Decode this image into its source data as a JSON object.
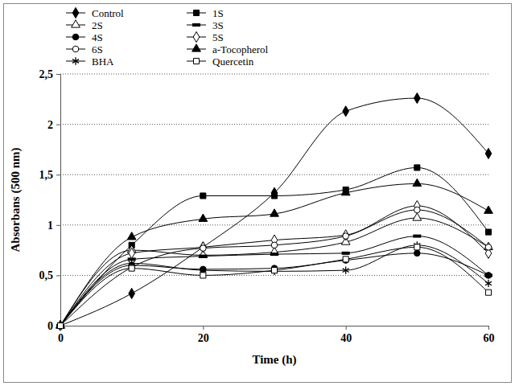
{
  "chart_data": {
    "type": "line",
    "x_label": "Time (h)",
    "y_label": "Absorbans (500 nm)",
    "x": [
      0,
      10,
      20,
      30,
      40,
      50,
      60
    ],
    "xlim": [
      0,
      60
    ],
    "xticks": [
      0,
      20,
      40,
      60
    ],
    "ylim": [
      0,
      2.5
    ],
    "yticks": [
      0,
      {
        "value": 0.5,
        "label": "0,5"
      },
      1,
      {
        "value": 1.5,
        "label": "1,5"
      },
      2,
      {
        "value": 2.5,
        "label": "2,5"
      }
    ],
    "grid": true,
    "legend": "top-left",
    "series": [
      {
        "name": "Control",
        "color": "#000000",
        "marker": "diamond",
        "values": [
          0,
          0.32,
          0.78,
          1.32,
          2.13,
          2.26,
          1.71
        ]
      },
      {
        "name": "1S",
        "color": "#000000",
        "marker": "square",
        "values": [
          0,
          0.8,
          1.29,
          1.29,
          1.35,
          1.57,
          0.93
        ]
      },
      {
        "name": "2S",
        "color": "#000000",
        "marker": "triangle-open",
        "values": [
          0,
          0.75,
          0.7,
          0.73,
          0.83,
          1.07,
          0.78
        ]
      },
      {
        "name": "3S",
        "color": "#000000",
        "marker": "dash",
        "values": [
          0,
          0.66,
          0.69,
          0.71,
          0.72,
          0.89,
          0.5
        ]
      },
      {
        "name": "4S",
        "color": "#000000",
        "marker": "circle",
        "values": [
          0,
          0.6,
          0.56,
          0.57,
          0.65,
          0.72,
          0.5
        ]
      },
      {
        "name": "5S",
        "color": "#000000",
        "marker": "diamond-open",
        "values": [
          0,
          0.72,
          0.78,
          0.85,
          0.9,
          1.19,
          0.72
        ]
      },
      {
        "name": "6S",
        "color": "#000000",
        "marker": "circle-open",
        "values": [
          0,
          0.58,
          0.77,
          0.8,
          0.89,
          1.15,
          0.78
        ]
      },
      {
        "name": "a-Tocopherol",
        "color": "#000000",
        "marker": "triangle",
        "values": [
          0,
          0.88,
          1.06,
          1.11,
          1.32,
          1.41,
          1.14
        ]
      },
      {
        "name": "BHA",
        "color": "#000000",
        "marker": "asterisk",
        "values": [
          0,
          0.62,
          0.55,
          0.54,
          0.55,
          0.8,
          0.42
        ]
      },
      {
        "name": "Quercetin",
        "color": "#000000",
        "marker": "square-open",
        "values": [
          0,
          0.57,
          0.5,
          0.55,
          0.66,
          0.78,
          0.33
        ]
      }
    ]
  }
}
